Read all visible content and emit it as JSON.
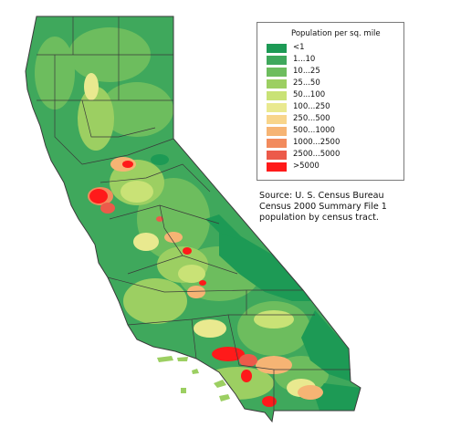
{
  "colors": {
    "lt1": "#1d9a55",
    "1_10": "#3fa85c",
    "10_25": "#6dbd5e",
    "25_50": "#9ccf62",
    "50_100": "#c9e276",
    "100_250": "#e9e98f",
    "250_500": "#f8d58b",
    "500_1000": "#f6b474",
    "1000_2500": "#f28b5d",
    "2500_5000": "#ec5a4a",
    "gt5000": "#ff1a1a",
    "boundary": "#3a3a3a"
  },
  "legend": {
    "title": "Population per sq. mile",
    "items": [
      {
        "label": "<1",
        "color": "#1d9a55"
      },
      {
        "label": "1...10",
        "color": "#3fa85c"
      },
      {
        "label": "10...25",
        "color": "#6dbd5e"
      },
      {
        "label": "25...50",
        "color": "#9ccf62"
      },
      {
        "label": "50...100",
        "color": "#c9e276"
      },
      {
        "label": "100...250",
        "color": "#e9e98f"
      },
      {
        "label": "250...500",
        "color": "#f8d58b"
      },
      {
        "label": "500...1000",
        "color": "#f6b474"
      },
      {
        "label": "1000...2500",
        "color": "#f28b5d"
      },
      {
        "label": "2500...5000",
        "color": "#ec5a4a"
      },
      {
        "label": ">5000",
        "color": "#ff1a1a"
      }
    ]
  },
  "source": {
    "line1": "Source: U. S. Census Bureau",
    "line2": "Census 2000 Summary File 1",
    "line3": "population by census tract."
  }
}
